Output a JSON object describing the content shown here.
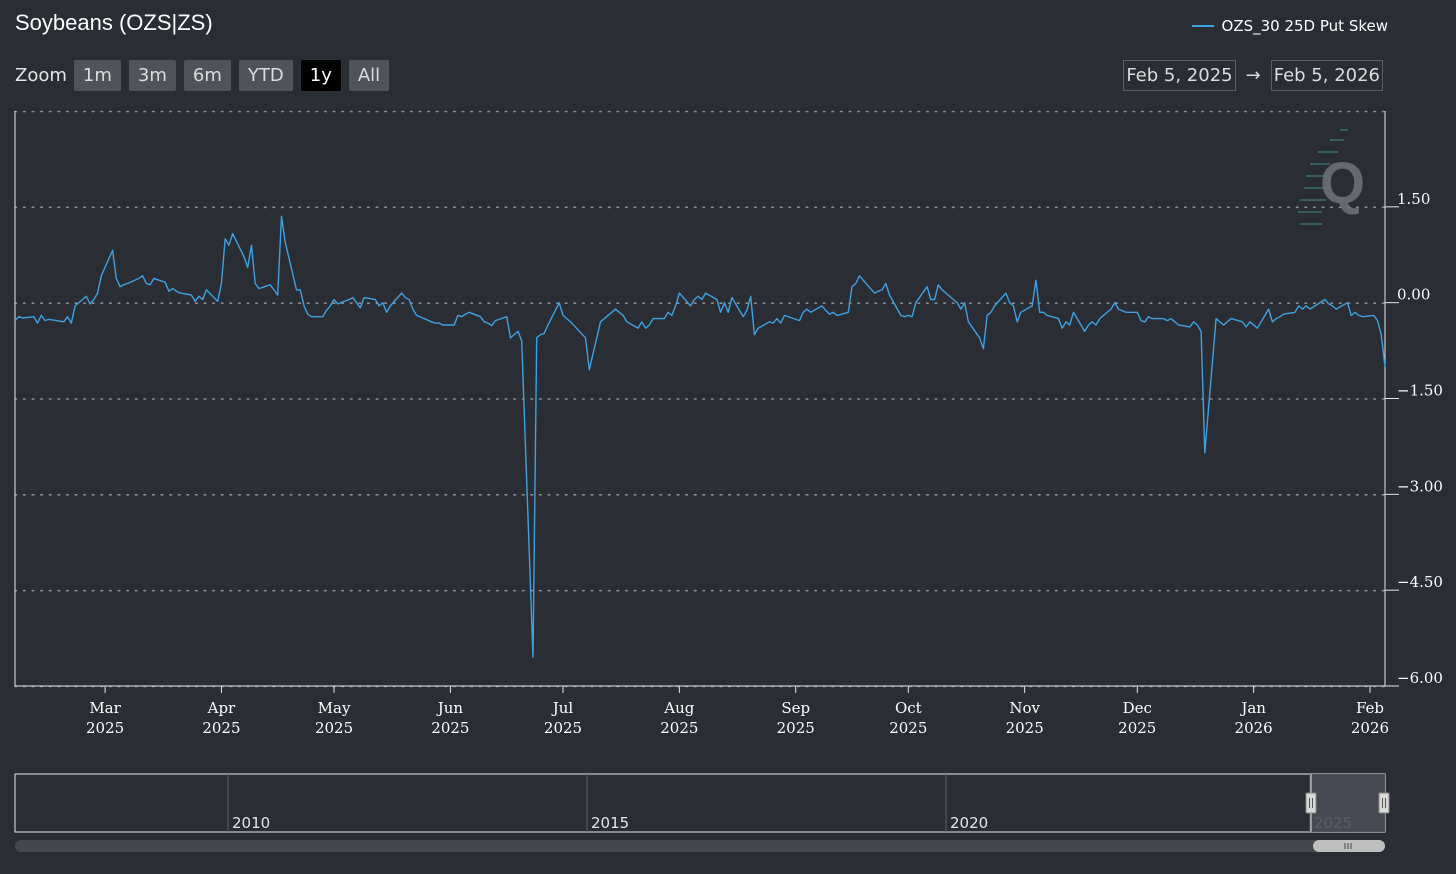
{
  "chart_data": {
    "type": "line",
    "title": "Soybeans (OZS|ZS)",
    "series": [
      {
        "name": "OZS_30 25D Put Skew",
        "color": "#3ea1e0",
        "points": [
          [
            "2025-02-05",
            -0.28
          ],
          [
            "2025-02-06",
            -0.22
          ],
          [
            "2025-02-07",
            -0.24
          ],
          [
            "2025-02-10",
            -0.22
          ],
          [
            "2025-02-11",
            -0.32
          ],
          [
            "2025-02-12",
            -0.2
          ],
          [
            "2025-02-13",
            -0.28
          ],
          [
            "2025-02-14",
            -0.26
          ],
          [
            "2025-02-18",
            -0.3
          ],
          [
            "2025-02-19",
            -0.22
          ],
          [
            "2025-02-20",
            -0.32
          ],
          [
            "2025-02-21",
            -0.05
          ],
          [
            "2025-02-24",
            0.1
          ],
          [
            "2025-02-25",
            -0.02
          ],
          [
            "2025-02-26",
            0.05
          ],
          [
            "2025-02-27",
            0.15
          ],
          [
            "2025-02-28",
            0.42
          ],
          [
            "2025-03-03",
            0.82
          ],
          [
            "2025-03-04",
            0.38
          ],
          [
            "2025-03-05",
            0.25
          ],
          [
            "2025-03-06",
            0.28
          ],
          [
            "2025-03-07",
            0.3
          ],
          [
            "2025-03-10",
            0.38
          ],
          [
            "2025-03-11",
            0.42
          ],
          [
            "2025-03-12",
            0.3
          ],
          [
            "2025-03-13",
            0.28
          ],
          [
            "2025-03-14",
            0.38
          ],
          [
            "2025-03-17",
            0.32
          ],
          [
            "2025-03-18",
            0.18
          ],
          [
            "2025-03-19",
            0.22
          ],
          [
            "2025-03-20",
            0.18
          ],
          [
            "2025-03-21",
            0.15
          ],
          [
            "2025-03-24",
            0.12
          ],
          [
            "2025-03-25",
            0.02
          ],
          [
            "2025-03-26",
            0.1
          ],
          [
            "2025-03-27",
            0.05
          ],
          [
            "2025-03-28",
            0.2
          ],
          [
            "2025-03-31",
            0.02
          ],
          [
            "2025-04-01",
            0.3
          ],
          [
            "2025-04-02",
            1.0
          ],
          [
            "2025-04-03",
            0.9
          ],
          [
            "2025-04-04",
            1.08
          ],
          [
            "2025-04-07",
            0.72
          ],
          [
            "2025-04-08",
            0.55
          ],
          [
            "2025-04-09",
            0.9
          ],
          [
            "2025-04-10",
            0.3
          ],
          [
            "2025-04-11",
            0.22
          ],
          [
            "2025-04-14",
            0.28
          ],
          [
            "2025-04-15",
            0.2
          ],
          [
            "2025-04-16",
            0.12
          ],
          [
            "2025-04-17",
            1.35
          ],
          [
            "2025-04-18",
            0.95
          ],
          [
            "2025-04-21",
            0.2
          ],
          [
            "2025-04-22",
            0.2
          ],
          [
            "2025-04-23",
            -0.05
          ],
          [
            "2025-04-24",
            -0.18
          ],
          [
            "2025-04-25",
            -0.22
          ],
          [
            "2025-04-28",
            -0.22
          ],
          [
            "2025-04-29",
            -0.12
          ],
          [
            "2025-04-30",
            -0.05
          ],
          [
            "2025-05-01",
            0.05
          ],
          [
            "2025-05-02",
            -0.02
          ],
          [
            "2025-05-05",
            0.05
          ],
          [
            "2025-05-06",
            0.08
          ],
          [
            "2025-05-07",
            0.0
          ],
          [
            "2025-05-08",
            -0.08
          ],
          [
            "2025-05-09",
            0.08
          ],
          [
            "2025-05-12",
            0.05
          ],
          [
            "2025-05-13",
            -0.05
          ],
          [
            "2025-05-14",
            0.0
          ],
          [
            "2025-05-15",
            -0.15
          ],
          [
            "2025-05-16",
            -0.05
          ],
          [
            "2025-05-19",
            0.15
          ],
          [
            "2025-05-20",
            0.08
          ],
          [
            "2025-05-21",
            0.05
          ],
          [
            "2025-05-22",
            -0.1
          ],
          [
            "2025-05-23",
            -0.2
          ],
          [
            "2025-05-27",
            -0.3
          ],
          [
            "2025-05-28",
            -0.32
          ],
          [
            "2025-05-29",
            -0.32
          ],
          [
            "2025-05-30",
            -0.35
          ],
          [
            "2025-06-02",
            -0.35
          ],
          [
            "2025-06-03",
            -0.2
          ],
          [
            "2025-06-04",
            -0.22
          ],
          [
            "2025-06-05",
            -0.18
          ],
          [
            "2025-06-06",
            -0.15
          ],
          [
            "2025-06-09",
            -0.22
          ],
          [
            "2025-06-10",
            -0.3
          ],
          [
            "2025-06-11",
            -0.32
          ],
          [
            "2025-06-12",
            -0.36
          ],
          [
            "2025-06-13",
            -0.28
          ],
          [
            "2025-06-16",
            -0.22
          ],
          [
            "2025-06-17",
            -0.55
          ],
          [
            "2025-06-18",
            -0.5
          ],
          [
            "2025-06-19",
            -0.45
          ],
          [
            "2025-06-20",
            -0.6
          ],
          [
            "2025-06-23",
            -5.55
          ],
          [
            "2025-06-24",
            -0.55
          ],
          [
            "2025-06-25",
            -0.5
          ],
          [
            "2025-06-26",
            -0.48
          ],
          [
            "2025-06-27",
            -0.35
          ],
          [
            "2025-06-30",
            0.0
          ],
          [
            "2025-07-01",
            -0.2
          ],
          [
            "2025-07-02",
            -0.25
          ],
          [
            "2025-07-03",
            -0.3
          ],
          [
            "2025-07-07",
            -0.55
          ],
          [
            "2025-07-08",
            -1.05
          ],
          [
            "2025-07-09",
            -0.8
          ],
          [
            "2025-07-10",
            -0.55
          ],
          [
            "2025-07-11",
            -0.3
          ],
          [
            "2025-07-14",
            -0.15
          ],
          [
            "2025-07-15",
            -0.1
          ],
          [
            "2025-07-16",
            -0.15
          ],
          [
            "2025-07-17",
            -0.2
          ],
          [
            "2025-07-18",
            -0.3
          ],
          [
            "2025-07-21",
            -0.4
          ],
          [
            "2025-07-22",
            -0.3
          ],
          [
            "2025-07-23",
            -0.4
          ],
          [
            "2025-07-24",
            -0.35
          ],
          [
            "2025-07-25",
            -0.25
          ],
          [
            "2025-07-28",
            -0.25
          ],
          [
            "2025-07-29",
            -0.15
          ],
          [
            "2025-07-30",
            -0.2
          ],
          [
            "2025-07-31",
            -0.05
          ],
          [
            "2025-08-01",
            0.15
          ],
          [
            "2025-08-04",
            -0.05
          ],
          [
            "2025-08-05",
            0.05
          ],
          [
            "2025-08-06",
            0.1
          ],
          [
            "2025-08-07",
            0.05
          ],
          [
            "2025-08-08",
            0.15
          ],
          [
            "2025-08-11",
            0.05
          ],
          [
            "2025-08-12",
            -0.15
          ],
          [
            "2025-08-13",
            0.0
          ],
          [
            "2025-08-14",
            -0.15
          ],
          [
            "2025-08-15",
            0.08
          ],
          [
            "2025-08-18",
            -0.22
          ],
          [
            "2025-08-19",
            -0.12
          ],
          [
            "2025-08-20",
            0.1
          ],
          [
            "2025-08-21",
            -0.5
          ],
          [
            "2025-08-22",
            -0.4
          ],
          [
            "2025-08-25",
            -0.3
          ],
          [
            "2025-08-26",
            -0.32
          ],
          [
            "2025-08-27",
            -0.25
          ],
          [
            "2025-08-28",
            -0.32
          ],
          [
            "2025-08-29",
            -0.2
          ],
          [
            "2025-09-02",
            -0.28
          ],
          [
            "2025-09-03",
            -0.15
          ],
          [
            "2025-09-04",
            -0.1
          ],
          [
            "2025-09-05",
            -0.15
          ],
          [
            "2025-09-08",
            -0.05
          ],
          [
            "2025-09-09",
            -0.12
          ],
          [
            "2025-09-10",
            -0.18
          ],
          [
            "2025-09-11",
            -0.15
          ],
          [
            "2025-09-12",
            -0.2
          ],
          [
            "2025-09-15",
            -0.15
          ],
          [
            "2025-09-16",
            0.25
          ],
          [
            "2025-09-17",
            0.3
          ],
          [
            "2025-09-18",
            0.42
          ],
          [
            "2025-09-19",
            0.35
          ],
          [
            "2025-09-22",
            0.15
          ],
          [
            "2025-09-23",
            0.18
          ],
          [
            "2025-09-24",
            0.2
          ],
          [
            "2025-09-25",
            0.3
          ],
          [
            "2025-09-26",
            0.12
          ],
          [
            "2025-09-29",
            -0.2
          ],
          [
            "2025-09-30",
            -0.22
          ],
          [
            "2025-10-01",
            -0.2
          ],
          [
            "2025-10-02",
            -0.22
          ],
          [
            "2025-10-03",
            0.0
          ],
          [
            "2025-10-06",
            0.25
          ],
          [
            "2025-10-07",
            0.05
          ],
          [
            "2025-10-08",
            0.05
          ],
          [
            "2025-10-09",
            0.28
          ],
          [
            "2025-10-10",
            0.2
          ],
          [
            "2025-10-13",
            0.05
          ],
          [
            "2025-10-14",
            0.0
          ],
          [
            "2025-10-15",
            -0.1
          ],
          [
            "2025-10-16",
            0.0
          ],
          [
            "2025-10-17",
            -0.3
          ],
          [
            "2025-10-20",
            -0.55
          ],
          [
            "2025-10-21",
            -0.72
          ],
          [
            "2025-10-22",
            -0.2
          ],
          [
            "2025-10-23",
            -0.15
          ],
          [
            "2025-10-24",
            -0.05
          ],
          [
            "2025-10-27",
            0.15
          ],
          [
            "2025-10-28",
            0.0
          ],
          [
            "2025-10-29",
            -0.05
          ],
          [
            "2025-10-30",
            -0.3
          ],
          [
            "2025-10-31",
            -0.15
          ],
          [
            "2025-11-03",
            -0.05
          ],
          [
            "2025-11-04",
            0.35
          ],
          [
            "2025-11-05",
            -0.15
          ],
          [
            "2025-11-06",
            -0.15
          ],
          [
            "2025-11-07",
            -0.2
          ],
          [
            "2025-11-10",
            -0.25
          ],
          [
            "2025-11-11",
            -0.4
          ],
          [
            "2025-11-12",
            -0.3
          ],
          [
            "2025-11-13",
            -0.35
          ],
          [
            "2025-11-14",
            -0.15
          ],
          [
            "2025-11-17",
            -0.45
          ],
          [
            "2025-11-18",
            -0.35
          ],
          [
            "2025-11-19",
            -0.3
          ],
          [
            "2025-11-20",
            -0.35
          ],
          [
            "2025-11-21",
            -0.25
          ],
          [
            "2025-11-24",
            -0.1
          ],
          [
            "2025-11-25",
            0.0
          ],
          [
            "2025-11-26",
            -0.1
          ],
          [
            "2025-11-28",
            -0.15
          ],
          [
            "2025-12-01",
            -0.15
          ],
          [
            "2025-12-02",
            -0.28
          ],
          [
            "2025-12-03",
            -0.3
          ],
          [
            "2025-12-04",
            -0.22
          ],
          [
            "2025-12-05",
            -0.25
          ],
          [
            "2025-12-08",
            -0.25
          ],
          [
            "2025-12-09",
            -0.28
          ],
          [
            "2025-12-10",
            -0.25
          ],
          [
            "2025-12-11",
            -0.3
          ],
          [
            "2025-12-12",
            -0.35
          ],
          [
            "2025-12-15",
            -0.38
          ],
          [
            "2025-12-16",
            -0.3
          ],
          [
            "2025-12-17",
            -0.35
          ],
          [
            "2025-12-18",
            -0.45
          ],
          [
            "2025-12-19",
            -2.35
          ],
          [
            "2025-12-22",
            -0.25
          ],
          [
            "2025-12-23",
            -0.3
          ],
          [
            "2025-12-24",
            -0.35
          ],
          [
            "2025-12-26",
            -0.25
          ],
          [
            "2025-12-29",
            -0.3
          ],
          [
            "2025-12-30",
            -0.38
          ],
          [
            "2025-12-31",
            -0.3
          ],
          [
            "2026-01-02",
            -0.4
          ],
          [
            "2026-01-05",
            -0.1
          ],
          [
            "2026-01-06",
            -0.3
          ],
          [
            "2026-01-07",
            -0.25
          ],
          [
            "2026-01-08",
            -0.22
          ],
          [
            "2026-01-09",
            -0.18
          ],
          [
            "2026-01-12",
            -0.15
          ],
          [
            "2026-01-13",
            -0.05
          ],
          [
            "2026-01-14",
            -0.1
          ],
          [
            "2026-01-15",
            -0.05
          ],
          [
            "2026-01-16",
            -0.1
          ],
          [
            "2026-01-20",
            0.05
          ],
          [
            "2026-01-21",
            -0.02
          ],
          [
            "2026-01-22",
            -0.05
          ],
          [
            "2026-01-23",
            -0.1
          ],
          [
            "2026-01-26",
            0.0
          ],
          [
            "2026-01-27",
            -0.2
          ],
          [
            "2026-01-28",
            -0.15
          ],
          [
            "2026-01-29",
            -0.2
          ],
          [
            "2026-01-30",
            -0.22
          ],
          [
            "2026-02-02",
            -0.2
          ],
          [
            "2026-02-03",
            -0.28
          ],
          [
            "2026-02-04",
            -0.5
          ],
          [
            "2026-02-05",
            -1.0
          ]
        ]
      }
    ],
    "yticks": [
      "1.50",
      "0.00",
      "−1.50",
      "−3.00",
      "−4.50",
      "−6.00"
    ],
    "yvalues": [
      1.5,
      0,
      -1.5,
      -3,
      -4.5,
      -6
    ],
    "ylim": [
      -6.0,
      3.0
    ],
    "xlim": [
      "2025-02-05",
      "2026-02-05"
    ],
    "xticks": [
      {
        "date": "2025-03-01",
        "month": "Mar",
        "year": "2025"
      },
      {
        "date": "2025-04-01",
        "month": "Apr",
        "year": "2025"
      },
      {
        "date": "2025-05-01",
        "month": "May",
        "year": "2025"
      },
      {
        "date": "2025-06-01",
        "month": "Jun",
        "year": "2025"
      },
      {
        "date": "2025-07-01",
        "month": "Jul",
        "year": "2025"
      },
      {
        "date": "2025-08-01",
        "month": "Aug",
        "year": "2025"
      },
      {
        "date": "2025-09-01",
        "month": "Sep",
        "year": "2025"
      },
      {
        "date": "2025-10-01",
        "month": "Oct",
        "year": "2025"
      },
      {
        "date": "2025-11-01",
        "month": "Nov",
        "year": "2025"
      },
      {
        "date": "2025-12-01",
        "month": "Dec",
        "year": "2025"
      },
      {
        "date": "2026-01-01",
        "month": "Jan",
        "year": "2026"
      },
      {
        "date": "2026-02-01",
        "month": "Feb",
        "year": "2026"
      }
    ],
    "grid": true,
    "legend_position": "top-right",
    "navigator_labels": [
      "2010",
      "2015",
      "2020",
      "2025"
    ]
  },
  "zoom": {
    "label": "Zoom",
    "buttons": [
      "1m",
      "3m",
      "6m",
      "YTD",
      "1y",
      "All"
    ],
    "active": "1y"
  },
  "range": {
    "from": "Feb 5, 2025",
    "arrow": "→",
    "to": "Feb 5, 2026"
  },
  "watermark": "Q"
}
